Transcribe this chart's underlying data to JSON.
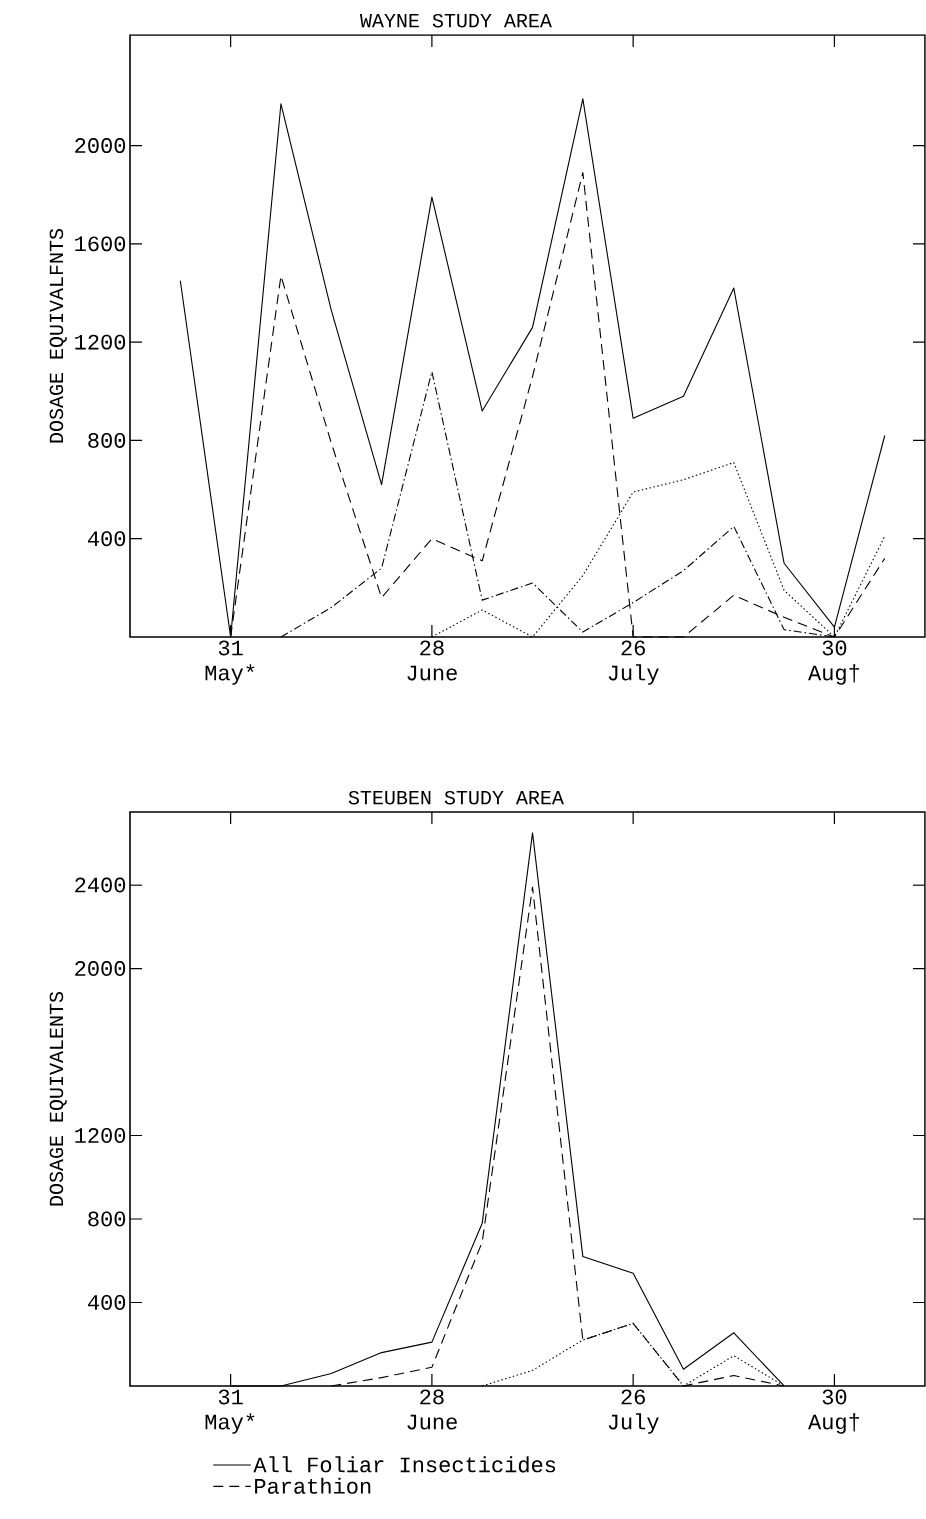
{
  "chart_data": [
    {
      "type": "line",
      "title": "WAYNE STUDY AREA",
      "ylabel": "DOSAGE EQUIVALFNTS",
      "categories": [
        null,
        "31 May*",
        null,
        null,
        null,
        "28 June",
        null,
        null,
        null,
        "26 July",
        null,
        null,
        null,
        "30 Aug†",
        null
      ],
      "ylim": [
        0,
        2450
      ],
      "yticks": [
        400,
        800,
        1200,
        1600,
        2000
      ],
      "series": [
        {
          "color": "#000000",
          "line_style": "solid",
          "values": [
            1450,
            0,
            2170,
            1330,
            620,
            1790,
            920,
            1260,
            2190,
            890,
            980,
            1420,
            300,
            40,
            820
          ]
        },
        {
          "color": "#000000",
          "line_style": "dashed",
          "values": [
            null,
            0,
            1470,
            790,
            160,
            400,
            310,
            1060,
            1890,
            0,
            0,
            170,
            80,
            0,
            320
          ]
        },
        {
          "color": "#000000",
          "line_style": "dotted",
          "values": [
            null,
            null,
            null,
            null,
            null,
            0,
            110,
            0,
            250,
            590,
            640,
            710,
            190,
            0,
            410
          ]
        },
        {
          "color": "#000000",
          "line_style": "dashdot",
          "values": [
            null,
            null,
            0,
            120,
            280,
            1080,
            150,
            220,
            20,
            140,
            270,
            450,
            30,
            0,
            null
          ]
        }
      ]
    },
    {
      "type": "line",
      "title": "STEUBEN STUDY AREA",
      "ylabel": "DOSAGE EQUIVALENTS",
      "categories": [
        null,
        "31 May*",
        null,
        null,
        null,
        "28 June",
        null,
        null,
        null,
        "26 July",
        null,
        null,
        null,
        "30 Aug†",
        null
      ],
      "ylim": [
        0,
        2750
      ],
      "yticks": [
        400,
        800,
        1200,
        2000,
        2400
      ],
      "legend": "bottom",
      "series": [
        {
          "name": "All Foliar Insecticides",
          "color": "#000000",
          "line_style": "solid",
          "values": [
            null,
            0,
            0,
            60,
            160,
            210,
            780,
            2650,
            620,
            540,
            80,
            255,
            0,
            null,
            null
          ]
        },
        {
          "name": "Parathion",
          "color": "#000000",
          "line_style": "dashed",
          "values": [
            null,
            null,
            null,
            0,
            40,
            90,
            690,
            2390,
            220,
            300,
            0,
            50,
            0,
            null,
            null
          ]
        },
        {
          "color": "#000000",
          "line_style": "dotted",
          "values": [
            null,
            null,
            null,
            null,
            null,
            null,
            0,
            75,
            220,
            300,
            0,
            145,
            0,
            null,
            null
          ]
        }
      ]
    }
  ]
}
